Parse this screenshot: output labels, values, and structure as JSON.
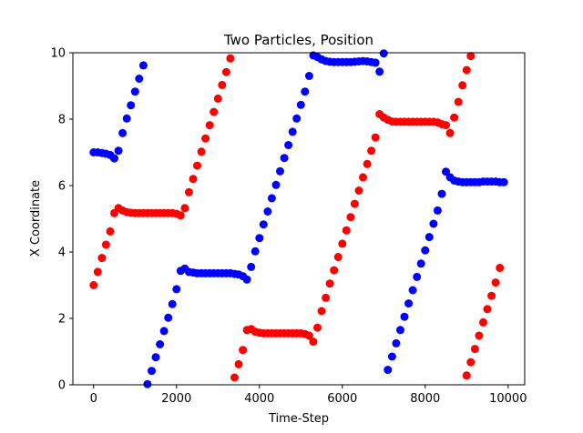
{
  "chart_data": {
    "type": "scatter",
    "title": "Two Particles, Position",
    "xlabel": "Time-Step",
    "ylabel": "X Coordinate",
    "xlim": [
      -500,
      10400
    ],
    "ylim": [
      0,
      10
    ],
    "x_ticks": [
      0,
      2000,
      4000,
      6000,
      8000,
      10000
    ],
    "y_ticks": [
      0,
      2,
      4,
      6,
      8,
      10
    ],
    "grid": false,
    "series": [
      {
        "color": "#0000ff",
        "points": [
          [
            0,
            7.0
          ],
          [
            100,
            7.0
          ],
          [
            200,
            6.98
          ],
          [
            300,
            6.96
          ],
          [
            400,
            6.92
          ],
          [
            500,
            6.82
          ],
          [
            600,
            7.05
          ],
          [
            700,
            7.58
          ],
          [
            800,
            8.02
          ],
          [
            900,
            8.42
          ],
          [
            1000,
            8.83
          ],
          [
            1100,
            9.22
          ],
          [
            1200,
            9.62
          ],
          [
            1300,
            0.02
          ],
          [
            1400,
            0.42
          ],
          [
            1500,
            0.83
          ],
          [
            1600,
            1.22
          ],
          [
            1700,
            1.62
          ],
          [
            1800,
            2.02
          ],
          [
            1900,
            2.43
          ],
          [
            2000,
            2.88
          ],
          [
            2100,
            3.43
          ],
          [
            2200,
            3.5
          ],
          [
            2300,
            3.4
          ],
          [
            2400,
            3.38
          ],
          [
            2500,
            3.36
          ],
          [
            2600,
            3.36
          ],
          [
            2700,
            3.36
          ],
          [
            2800,
            3.36
          ],
          [
            2900,
            3.36
          ],
          [
            3000,
            3.36
          ],
          [
            3100,
            3.36
          ],
          [
            3200,
            3.36
          ],
          [
            3300,
            3.36
          ],
          [
            3400,
            3.34
          ],
          [
            3500,
            3.32
          ],
          [
            3600,
            3.27
          ],
          [
            3700,
            3.17
          ],
          [
            3800,
            3.55
          ],
          [
            3900,
            4.02
          ],
          [
            4000,
            4.42
          ],
          [
            4100,
            4.83
          ],
          [
            4200,
            5.22
          ],
          [
            4300,
            5.62
          ],
          [
            4400,
            6.02
          ],
          [
            4500,
            6.43
          ],
          [
            4600,
            6.83
          ],
          [
            4700,
            7.22
          ],
          [
            4800,
            7.62
          ],
          [
            4900,
            8.02
          ],
          [
            5000,
            8.43
          ],
          [
            5100,
            8.83
          ],
          [
            5200,
            9.3
          ],
          [
            5300,
            9.92
          ],
          [
            5400,
            9.87
          ],
          [
            5500,
            9.8
          ],
          [
            5600,
            9.75
          ],
          [
            5700,
            9.73
          ],
          [
            5800,
            9.72
          ],
          [
            5900,
            9.72
          ],
          [
            6000,
            9.72
          ],
          [
            6100,
            9.72
          ],
          [
            6200,
            9.72
          ],
          [
            6300,
            9.73
          ],
          [
            6400,
            9.74
          ],
          [
            6500,
            9.75
          ],
          [
            6600,
            9.74
          ],
          [
            6700,
            9.72
          ],
          [
            6800,
            9.7
          ],
          [
            6900,
            9.43
          ],
          [
            7000,
            9.98
          ],
          [
            7100,
            0.45
          ],
          [
            7200,
            0.85
          ],
          [
            7300,
            1.25
          ],
          [
            7400,
            1.65
          ],
          [
            7500,
            2.05
          ],
          [
            7600,
            2.45
          ],
          [
            7700,
            2.85
          ],
          [
            7800,
            3.25
          ],
          [
            7900,
            3.65
          ],
          [
            8000,
            4.05
          ],
          [
            8100,
            4.45
          ],
          [
            8200,
            4.85
          ],
          [
            8300,
            5.25
          ],
          [
            8400,
            5.75
          ],
          [
            8500,
            6.42
          ],
          [
            8600,
            6.25
          ],
          [
            8700,
            6.15
          ],
          [
            8800,
            6.12
          ],
          [
            8900,
            6.1
          ],
          [
            9000,
            6.1
          ],
          [
            9100,
            6.1
          ],
          [
            9200,
            6.1
          ],
          [
            9300,
            6.1
          ],
          [
            9400,
            6.12
          ],
          [
            9500,
            6.12
          ],
          [
            9600,
            6.12
          ],
          [
            9700,
            6.12
          ],
          [
            9800,
            6.1
          ],
          [
            9900,
            6.1
          ]
        ]
      },
      {
        "color": "#ff0000",
        "points": [
          [
            0,
            3.0
          ],
          [
            100,
            3.4
          ],
          [
            200,
            3.82
          ],
          [
            300,
            4.22
          ],
          [
            400,
            4.62
          ],
          [
            500,
            5.17
          ],
          [
            600,
            5.32
          ],
          [
            700,
            5.25
          ],
          [
            800,
            5.2
          ],
          [
            900,
            5.18
          ],
          [
            1000,
            5.17
          ],
          [
            1100,
            5.17
          ],
          [
            1200,
            5.17
          ],
          [
            1300,
            5.17
          ],
          [
            1400,
            5.17
          ],
          [
            1500,
            5.17
          ],
          [
            1600,
            5.17
          ],
          [
            1700,
            5.17
          ],
          [
            1800,
            5.17
          ],
          [
            1900,
            5.17
          ],
          [
            2000,
            5.15
          ],
          [
            2100,
            5.1
          ],
          [
            2200,
            5.32
          ],
          [
            2300,
            5.8
          ],
          [
            2400,
            6.2
          ],
          [
            2500,
            6.6
          ],
          [
            2600,
            7.02
          ],
          [
            2700,
            7.42
          ],
          [
            2800,
            7.82
          ],
          [
            2900,
            8.22
          ],
          [
            3000,
            8.62
          ],
          [
            3100,
            9.03
          ],
          [
            3200,
            9.42
          ],
          [
            3300,
            9.83
          ],
          [
            3400,
            0.22
          ],
          [
            3500,
            0.62
          ],
          [
            3600,
            1.05
          ],
          [
            3700,
            1.65
          ],
          [
            3800,
            1.68
          ],
          [
            3900,
            1.6
          ],
          [
            4000,
            1.57
          ],
          [
            4100,
            1.55
          ],
          [
            4200,
            1.55
          ],
          [
            4300,
            1.55
          ],
          [
            4400,
            1.55
          ],
          [
            4500,
            1.55
          ],
          [
            4600,
            1.55
          ],
          [
            4700,
            1.55
          ],
          [
            4800,
            1.55
          ],
          [
            4900,
            1.55
          ],
          [
            5000,
            1.55
          ],
          [
            5100,
            1.53
          ],
          [
            5200,
            1.48
          ],
          [
            5300,
            1.3
          ],
          [
            5400,
            1.72
          ],
          [
            5500,
            2.22
          ],
          [
            5600,
            2.62
          ],
          [
            5700,
            3.05
          ],
          [
            5800,
            3.45
          ],
          [
            5900,
            3.85
          ],
          [
            6000,
            4.25
          ],
          [
            6100,
            4.65
          ],
          [
            6200,
            5.05
          ],
          [
            6300,
            5.45
          ],
          [
            6400,
            5.85
          ],
          [
            6500,
            6.25
          ],
          [
            6600,
            6.65
          ],
          [
            6700,
            7.05
          ],
          [
            6800,
            7.45
          ],
          [
            6900,
            8.15
          ],
          [
            7000,
            8.05
          ],
          [
            7100,
            7.98
          ],
          [
            7200,
            7.93
          ],
          [
            7300,
            7.92
          ],
          [
            7400,
            7.92
          ],
          [
            7500,
            7.92
          ],
          [
            7600,
            7.92
          ],
          [
            7700,
            7.92
          ],
          [
            7800,
            7.92
          ],
          [
            7900,
            7.92
          ],
          [
            8000,
            7.92
          ],
          [
            8100,
            7.92
          ],
          [
            8200,
            7.92
          ],
          [
            8300,
            7.9
          ],
          [
            8400,
            7.85
          ],
          [
            8500,
            7.82
          ],
          [
            8600,
            7.58
          ],
          [
            8700,
            8.05
          ],
          [
            8800,
            8.52
          ],
          [
            8900,
            9.02
          ],
          [
            9000,
            9.48
          ],
          [
            9100,
            9.9
          ],
          [
            9000,
            0.28
          ],
          [
            9100,
            0.68
          ],
          [
            9200,
            1.08
          ],
          [
            9300,
            1.48
          ],
          [
            9400,
            1.88
          ],
          [
            9500,
            2.28
          ],
          [
            9600,
            2.68
          ],
          [
            9700,
            3.08
          ],
          [
            9800,
            3.52
          ]
        ]
      }
    ]
  }
}
